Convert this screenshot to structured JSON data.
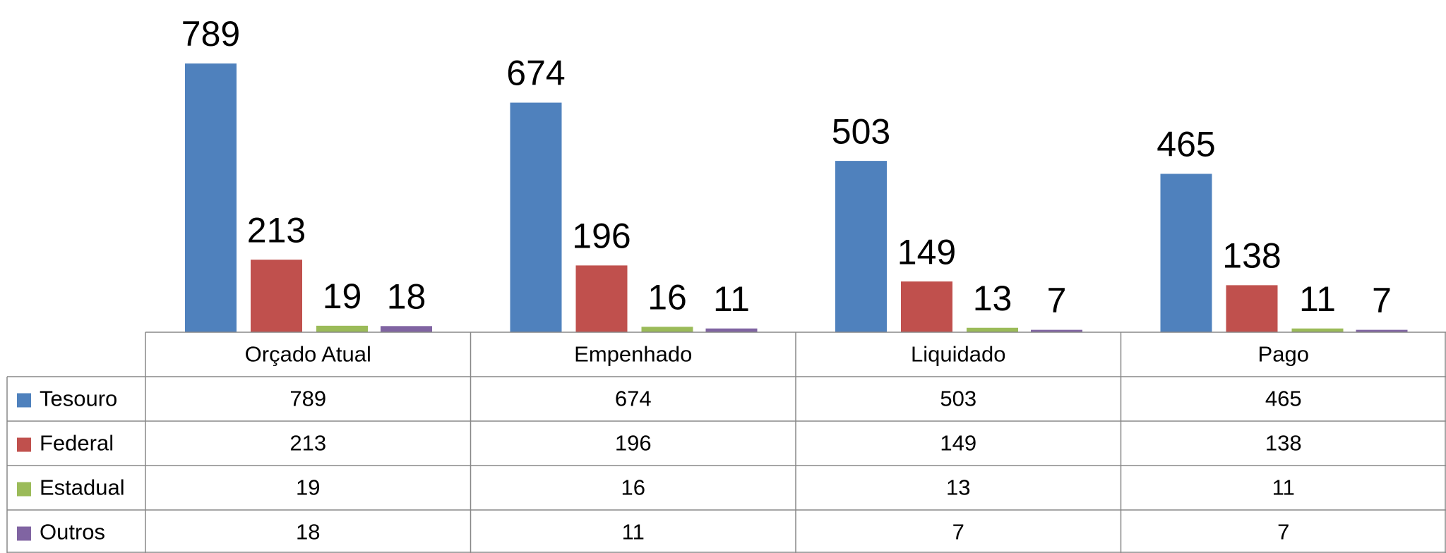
{
  "chart_data": {
    "type": "bar",
    "categories": [
      "Orçado Atual",
      "Empenhado",
      "Liquidado",
      "Pago"
    ],
    "series": [
      {
        "name": "Tesouro",
        "color": "#4f81bd",
        "values": [
          789,
          674,
          503,
          465
        ]
      },
      {
        "name": "Federal",
        "color": "#c0504d",
        "values": [
          213,
          196,
          149,
          138
        ]
      },
      {
        "name": "Estadual",
        "color": "#9bbb59",
        "values": [
          19,
          16,
          13,
          11
        ]
      },
      {
        "name": "Outros",
        "color": "#8064a2",
        "values": [
          18,
          11,
          7,
          7
        ]
      }
    ]
  }
}
